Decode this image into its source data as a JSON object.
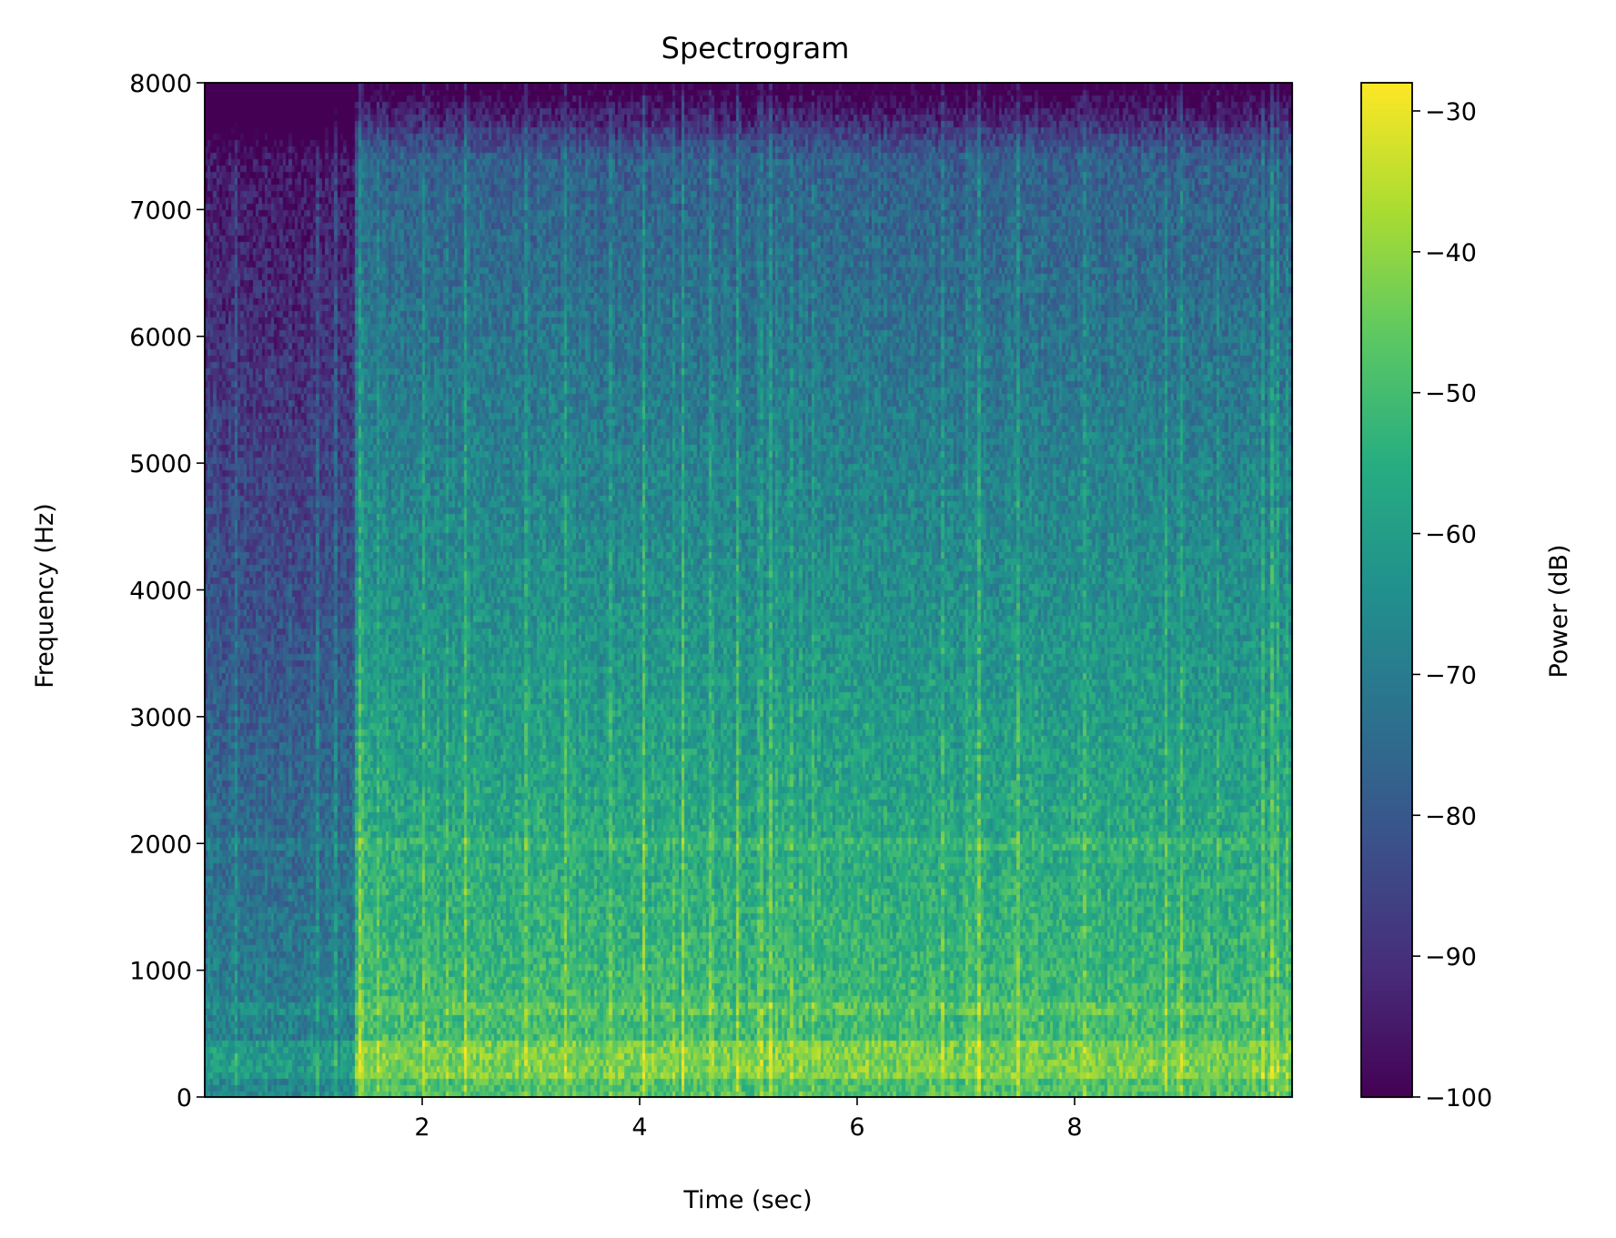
{
  "chart_data": {
    "type": "heatmap",
    "title": "Spectrogram",
    "xlabel": "Time (sec)",
    "ylabel": "Frequency (Hz)",
    "colorbar_label": "Power (dB)",
    "colormap": "viridis",
    "xlim": [
      0,
      10
    ],
    "ylim": [
      0,
      8000
    ],
    "clim": [
      -100,
      -28
    ],
    "x_ticks": [
      2,
      4,
      6,
      8
    ],
    "x_tick_labels": [
      "2",
      "4",
      "6",
      "8"
    ],
    "y_ticks": [
      0,
      1000,
      2000,
      3000,
      4000,
      5000,
      6000,
      7000,
      8000
    ],
    "y_tick_labels": [
      "0",
      "1000",
      "2000",
      "3000",
      "4000",
      "5000",
      "6000",
      "7000",
      "8000"
    ],
    "colorbar_ticks": [
      -100,
      -90,
      -80,
      -70,
      -60,
      -50,
      -40,
      -30
    ],
    "colorbar_tick_labels": [
      "−100",
      "−90",
      "−80",
      "−70",
      "−60",
      "−50",
      "−40",
      "−30"
    ],
    "bands_hz": [
      200,
      300,
      400,
      700,
      2000
    ],
    "quiet_interval_sec": [
      0,
      1.4
    ]
  }
}
